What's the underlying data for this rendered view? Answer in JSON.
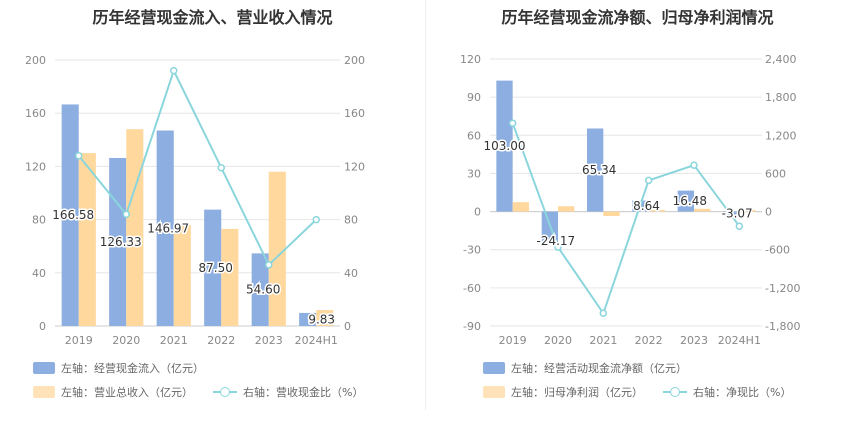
{
  "colors": {
    "bar_primary": "#8daee0",
    "bar_secondary": "#ffd89e",
    "line": "#8ad6dc",
    "grid": "#e6e6e6",
    "axis_text": "#888888"
  },
  "chart_data": [
    {
      "type": "bar",
      "title": "历年经营现金流入、营业收入情况",
      "categories": [
        "2019",
        "2020",
        "2021",
        "2022",
        "2023",
        "2024H1"
      ],
      "left_axis": {
        "ylim": [
          0,
          200
        ],
        "ticks": [
          "0",
          "40",
          "80",
          "120",
          "160",
          "200"
        ]
      },
      "right_axis": {
        "ylim": [
          0,
          200
        ],
        "ticks": [
          "0",
          "40",
          "80",
          "120",
          "160",
          "200"
        ]
      },
      "series": [
        {
          "name": "左轴：经营现金流入（亿元）",
          "kind": "bar",
          "axis": "left",
          "values": [
            166.58,
            126.33,
            146.97,
            87.5,
            54.6,
            9.83
          ],
          "labels": [
            "166.58",
            "126.33",
            "146.97",
            "87.50",
            "54.60",
            "9.83"
          ]
        },
        {
          "name": "左轴：营业总收入（亿元）",
          "kind": "bar",
          "axis": "left",
          "values": [
            130,
            148,
            76,
            73,
            116,
            12
          ]
        },
        {
          "name": "右轴：营收现金比（%）",
          "kind": "line",
          "axis": "right",
          "values": [
            128,
            84,
            192,
            119,
            46,
            80
          ]
        }
      ]
    },
    {
      "type": "bar",
      "title": "历年经营现金流净额、归母净利润情况",
      "categories": [
        "2019",
        "2020",
        "2021",
        "2022",
        "2023",
        "2024H1"
      ],
      "left_axis": {
        "ylim": [
          -90,
          120
        ],
        "ticks": [
          "-90",
          "-60",
          "-30",
          "0",
          "30",
          "60",
          "90",
          "120"
        ]
      },
      "right_axis": {
        "ylim": [
          -1800,
          2400
        ],
        "ticks": [
          "-1,800",
          "-1,200",
          "-600",
          "0",
          "600",
          "1,200",
          "1,800",
          "2,400"
        ]
      },
      "series": [
        {
          "name": "左轴：经营活动现金流净额（亿元）",
          "kind": "bar",
          "axis": "left",
          "values": [
            103.0,
            -24.17,
            65.34,
            8.64,
            16.48,
            -3.07
          ],
          "labels": [
            "103.00",
            "-24.17",
            "65.34",
            "8.64",
            "16.48",
            "-3.07"
          ]
        },
        {
          "name": "左轴：归母净利润（亿元）",
          "kind": "bar",
          "axis": "left",
          "values": [
            7.4,
            4.2,
            -3.5,
            1.2,
            2.2,
            1.3
          ]
        },
        {
          "name": "右轴：净现比（%）",
          "kind": "line",
          "axis": "right",
          "values": [
            1390,
            -560,
            -1600,
            490,
            730,
            -230
          ]
        }
      ]
    }
  ]
}
